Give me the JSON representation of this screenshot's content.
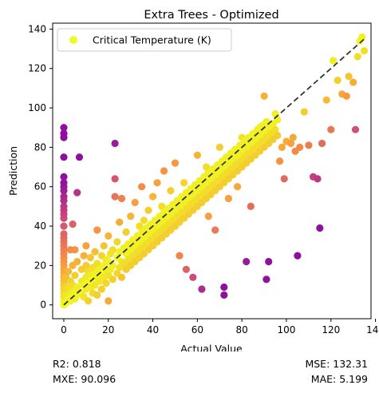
{
  "chart_data": {
    "type": "scatter",
    "title": "Extra Trees - Optimized",
    "xlabel": "Actual Value",
    "ylabel": "Prediction",
    "xlim": [
      -5,
      138
    ],
    "ylim": [
      -7,
      143
    ],
    "xticks": [
      0,
      20,
      40,
      60,
      80,
      100,
      120,
      140
    ],
    "yticks": [
      0,
      20,
      40,
      60,
      80,
      100,
      120,
      140
    ],
    "grid": false,
    "legend": {
      "location": "top-left",
      "entries": [
        "Critical Temperature (K)"
      ]
    },
    "reference_line": {
      "label": "",
      "from": [
        0,
        0
      ],
      "to": [
        135,
        135
      ],
      "style": "dashed",
      "color": "#333333"
    },
    "colormap": "plasma",
    "series": [
      {
        "name": "Critical Temperature (K)",
        "points": [
          [
            0,
            0
          ],
          [
            0,
            2
          ],
          [
            0,
            4
          ],
          [
            0,
            6
          ],
          [
            0,
            8
          ],
          [
            0,
            10
          ],
          [
            0,
            12
          ],
          [
            0,
            14
          ],
          [
            0,
            16
          ],
          [
            0,
            18
          ],
          [
            0,
            20
          ],
          [
            0,
            22
          ],
          [
            0,
            24
          ],
          [
            0,
            26
          ],
          [
            0,
            28
          ],
          [
            0,
            30
          ],
          [
            0,
            32
          ],
          [
            0,
            34
          ],
          [
            0,
            36
          ],
          [
            0,
            40
          ],
          [
            0,
            44
          ],
          [
            0,
            46
          ],
          [
            0,
            48
          ],
          [
            0,
            50
          ],
          [
            0,
            53
          ],
          [
            0,
            55
          ],
          [
            0,
            58
          ],
          [
            0,
            60
          ],
          [
            0,
            62
          ],
          [
            0,
            65
          ],
          [
            0,
            75
          ],
          [
            0,
            85
          ],
          [
            0,
            87
          ],
          [
            0,
            90
          ],
          [
            1,
            1
          ],
          [
            1,
            5
          ],
          [
            1,
            9
          ],
          [
            1,
            14
          ],
          [
            2,
            3
          ],
          [
            2,
            8
          ],
          [
            2,
            17
          ],
          [
            3,
            2
          ],
          [
            3,
            6
          ],
          [
            3,
            12
          ],
          [
            4,
            4
          ],
          [
            4,
            10
          ],
          [
            4,
            20
          ],
          [
            5,
            3
          ],
          [
            5,
            7
          ],
          [
            5,
            15
          ],
          [
            5,
            28
          ],
          [
            6,
            5
          ],
          [
            6,
            9
          ],
          [
            6,
            22
          ],
          [
            7,
            75
          ],
          [
            6,
            57
          ],
          [
            4,
            41
          ],
          [
            3,
            28
          ],
          [
            8,
            6
          ],
          [
            8,
            12
          ],
          [
            8,
            18
          ],
          [
            9,
            4
          ],
          [
            9,
            10
          ],
          [
            9,
            25
          ],
          [
            10,
            8
          ],
          [
            10,
            14
          ],
          [
            10,
            20
          ],
          [
            10,
            30
          ],
          [
            11,
            2
          ],
          [
            11,
            11
          ],
          [
            11,
            17
          ],
          [
            12,
            9
          ],
          [
            12,
            15
          ],
          [
            12,
            24
          ],
          [
            13,
            6
          ],
          [
            13,
            13
          ],
          [
            13,
            19
          ],
          [
            14,
            10
          ],
          [
            14,
            16
          ],
          [
            14,
            27
          ],
          [
            15,
            5
          ],
          [
            15,
            14
          ],
          [
            15,
            21
          ],
          [
            15,
            38
          ],
          [
            16,
            12
          ],
          [
            16,
            18
          ],
          [
            17,
            8
          ],
          [
            17,
            16
          ],
          [
            17,
            25
          ],
          [
            18,
            14
          ],
          [
            18,
            20
          ],
          [
            18,
            30
          ],
          [
            19,
            11
          ],
          [
            19,
            17
          ],
          [
            19,
            23
          ],
          [
            20,
            2
          ],
          [
            20,
            15
          ],
          [
            20,
            22
          ],
          [
            20,
            35
          ],
          [
            21,
            18
          ],
          [
            21,
            26
          ],
          [
            22,
            13
          ],
          [
            22,
            20
          ],
          [
            22,
            28
          ],
          [
            23,
            82
          ],
          [
            23,
            64
          ],
          [
            23,
            55
          ],
          [
            24,
            16
          ],
          [
            24,
            24
          ],
          [
            24,
            32
          ],
          [
            25,
            19
          ],
          [
            25,
            27
          ],
          [
            25,
            42
          ],
          [
            26,
            14
          ],
          [
            26,
            22
          ],
          [
            26,
            54
          ],
          [
            27,
            21
          ],
          [
            27,
            29
          ],
          [
            28,
            18
          ],
          [
            28,
            26
          ],
          [
            28,
            37
          ],
          [
            29,
            23
          ],
          [
            29,
            31
          ],
          [
            30,
            20
          ],
          [
            30,
            28
          ],
          [
            30,
            45
          ],
          [
            31,
            25
          ],
          [
            31,
            33
          ],
          [
            32,
            22
          ],
          [
            32,
            30
          ],
          [
            32,
            52
          ],
          [
            33,
            27
          ],
          [
            33,
            35
          ],
          [
            34,
            24
          ],
          [
            34,
            32
          ],
          [
            34,
            40
          ],
          [
            35,
            29
          ],
          [
            35,
            37
          ],
          [
            35,
            60
          ],
          [
            36,
            26
          ],
          [
            36,
            34
          ],
          [
            36,
            43
          ],
          [
            37,
            31
          ],
          [
            37,
            39
          ],
          [
            38,
            28
          ],
          [
            38,
            36
          ],
          [
            38,
            48
          ],
          [
            39,
            33
          ],
          [
            39,
            41
          ],
          [
            40,
            30
          ],
          [
            40,
            38
          ],
          [
            40,
            55
          ],
          [
            41,
            35
          ],
          [
            41,
            43
          ],
          [
            42,
            32
          ],
          [
            42,
            40
          ],
          [
            42,
            62
          ],
          [
            43,
            37
          ],
          [
            43,
            45
          ],
          [
            44,
            34
          ],
          [
            44,
            42
          ],
          [
            44,
            50
          ],
          [
            45,
            39
          ],
          [
            45,
            47
          ],
          [
            45,
            68
          ],
          [
            46,
            36
          ],
          [
            46,
            44
          ],
          [
            47,
            41
          ],
          [
            47,
            49
          ],
          [
            48,
            38
          ],
          [
            48,
            46
          ],
          [
            48,
            58
          ],
          [
            49,
            43
          ],
          [
            49,
            51
          ],
          [
            50,
            40
          ],
          [
            50,
            48
          ],
          [
            50,
            72
          ],
          [
            51,
            45
          ],
          [
            51,
            53
          ],
          [
            52,
            42
          ],
          [
            52,
            50
          ],
          [
            52,
            25
          ],
          [
            53,
            47
          ],
          [
            53,
            55
          ],
          [
            54,
            44
          ],
          [
            54,
            52
          ],
          [
            54,
            62
          ],
          [
            55,
            49
          ],
          [
            55,
            57
          ],
          [
            55,
            18
          ],
          [
            56,
            46
          ],
          [
            56,
            54
          ],
          [
            57,
            51
          ],
          [
            57,
            59
          ],
          [
            58,
            48
          ],
          [
            58,
            56
          ],
          [
            58,
            14
          ],
          [
            59,
            53
          ],
          [
            59,
            61
          ],
          [
            60,
            50
          ],
          [
            60,
            58
          ],
          [
            60,
            76
          ],
          [
            61,
            55
          ],
          [
            61,
            63
          ],
          [
            62,
            52
          ],
          [
            62,
            60
          ],
          [
            62,
            8
          ],
          [
            63,
            57
          ],
          [
            63,
            65
          ],
          [
            64,
            54
          ],
          [
            64,
            62
          ],
          [
            64,
            70
          ],
          [
            65,
            59
          ],
          [
            65,
            67
          ],
          [
            65,
            45
          ],
          [
            66,
            56
          ],
          [
            66,
            64
          ],
          [
            67,
            61
          ],
          [
            67,
            69
          ],
          [
            68,
            58
          ],
          [
            68,
            66
          ],
          [
            68,
            38
          ],
          [
            69,
            63
          ],
          [
            69,
            71
          ],
          [
            70,
            60
          ],
          [
            70,
            68
          ],
          [
            70,
            80
          ],
          [
            71,
            65
          ],
          [
            71,
            73
          ],
          [
            72,
            62
          ],
          [
            72,
            70
          ],
          [
            72,
            9
          ],
          [
            72,
            5
          ],
          [
            73,
            67
          ],
          [
            73,
            75
          ],
          [
            74,
            64
          ],
          [
            74,
            72
          ],
          [
            74,
            54
          ],
          [
            75,
            69
          ],
          [
            75,
            77
          ],
          [
            76,
            66
          ],
          [
            76,
            74
          ],
          [
            77,
            71
          ],
          [
            77,
            79
          ],
          [
            78,
            68
          ],
          [
            78,
            76
          ],
          [
            78,
            60
          ],
          [
            79,
            73
          ],
          [
            79,
            81
          ],
          [
            80,
            70
          ],
          [
            80,
            78
          ],
          [
            80,
            85
          ],
          [
            81,
            75
          ],
          [
            81,
            83
          ],
          [
            82,
            72
          ],
          [
            82,
            80
          ],
          [
            82,
            22
          ],
          [
            83,
            77
          ],
          [
            83,
            85
          ],
          [
            84,
            74
          ],
          [
            84,
            82
          ],
          [
            84,
            50
          ],
          [
            85,
            79
          ],
          [
            85,
            87
          ],
          [
            86,
            76
          ],
          [
            86,
            84
          ],
          [
            87,
            81
          ],
          [
            87,
            89
          ],
          [
            88,
            78
          ],
          [
            88,
            86
          ],
          [
            88,
            90
          ],
          [
            89,
            83
          ],
          [
            89,
            91
          ],
          [
            90,
            80
          ],
          [
            90,
            88
          ],
          [
            90,
            106
          ],
          [
            91,
            85
          ],
          [
            91,
            93
          ],
          [
            91,
            13
          ],
          [
            92,
            82
          ],
          [
            92,
            90
          ],
          [
            92,
            22
          ],
          [
            93,
            87
          ],
          [
            94,
            84
          ],
          [
            94,
            92
          ],
          [
            95,
            89
          ],
          [
            95,
            97
          ],
          [
            96,
            86
          ],
          [
            96,
            94
          ],
          [
            97,
            73
          ],
          [
            98,
            80
          ],
          [
            99,
            64
          ],
          [
            100,
            83
          ],
          [
            102,
            82
          ],
          [
            103,
            85
          ],
          [
            104,
            78
          ],
          [
            105,
            25
          ],
          [
            106,
            80
          ],
          [
            108,
            98
          ],
          [
            110,
            81
          ],
          [
            112,
            65
          ],
          [
            114,
            64
          ],
          [
            115,
            39
          ],
          [
            116,
            82
          ],
          [
            118,
            104
          ],
          [
            120,
            89
          ],
          [
            121,
            124
          ],
          [
            123,
            114
          ],
          [
            125,
            107
          ],
          [
            127,
            106
          ],
          [
            128,
            116
          ],
          [
            130,
            113
          ],
          [
            131,
            89
          ],
          [
            132,
            126
          ],
          [
            133,
            134
          ],
          [
            134,
            136
          ],
          [
            135,
            129
          ]
        ]
      }
    ]
  },
  "metrics": {
    "r2": "R2: 0.818",
    "mxe": "MXE: 90.096",
    "mse": "MSE: 132.31",
    "mae": "MAE: 5.199"
  }
}
